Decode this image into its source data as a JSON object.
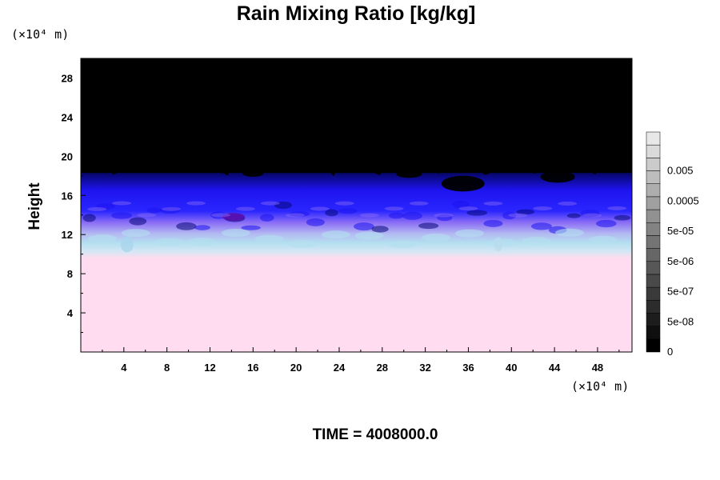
{
  "chart_data": {
    "type": "heatmap",
    "title": "Rain Mixing Ratio [kg/kg]",
    "xlabel": "",
    "ylabel": "Height",
    "x_unit": "(×10⁴ m)",
    "y_unit": "(×10⁴ m)",
    "xlim": [
      0,
      51.2
    ],
    "ylim": [
      0,
      30
    ],
    "x_ticks": [
      "4",
      "8",
      "12",
      "16",
      "20",
      "24",
      "28",
      "32",
      "36",
      "40",
      "44",
      "48"
    ],
    "y_ticks": [
      "4",
      "8",
      "12",
      "16",
      "20",
      "24",
      "28"
    ],
    "time_label": "TIME = 4008000.0",
    "colorbar": {
      "labels": [
        "0",
        "5e-08",
        "5e-07",
        "5e-06",
        "5e-05",
        "0.0005",
        "0.005"
      ],
      "levels": 17
    },
    "layers": [
      {
        "from_height": 0,
        "to_height": 10,
        "color": "#ffdcf0",
        "description": "uniform near-zero-value layer"
      },
      {
        "from_height": 10,
        "to_height": 19,
        "color": "#2020ff",
        "description": "turbulent transition band"
      },
      {
        "from_height": 19,
        "to_height": 30,
        "color": "#000000",
        "description": "upper layer"
      }
    ],
    "colors": {
      "lower": "#ffdcf0",
      "light_blue": "#b4e0f0",
      "violet": "#8a6cf5",
      "blue": "#1e14f0",
      "dark_blue": "#08087a",
      "top": "#000000"
    }
  }
}
